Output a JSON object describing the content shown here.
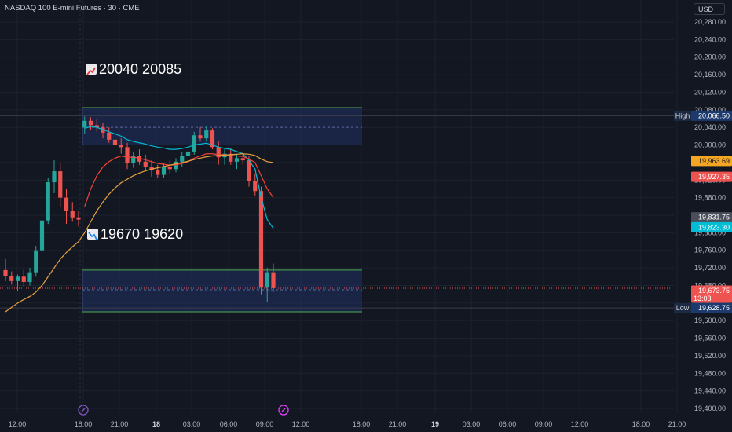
{
  "header": {
    "symbol": "NASDAQ 100 E-mini Futures · 30 · CME",
    "currency": "USD"
  },
  "annotations": {
    "target_up": "20040  20085",
    "target_down": "19670  19620"
  },
  "colors": {
    "bg": "#131722",
    "grid": "#1e222d",
    "up": "#26a69a",
    "down": "#ef5350",
    "zone_fill": "#1f2d5a",
    "zone_line": "#4caf50",
    "ema_fast": "#00bcd4",
    "ema_mid": "#f44336",
    "ema_slow": "#e6a23c",
    "text": "#b2b5be"
  },
  "chart_data": {
    "type": "candlestick",
    "title": "NASDAQ 100 E-mini Futures · 30 · CME",
    "ylim": [
      19390,
      20320
    ],
    "y_ticks": [
      20280,
      20240,
      20200,
      20160,
      20120,
      20080,
      20040,
      20000,
      19960,
      19920,
      19880,
      19840,
      19800,
      19760,
      19720,
      19680,
      19640,
      19600,
      19560,
      19520,
      19480,
      19440,
      19400
    ],
    "x_ticks": [
      "12:00",
      "18:00",
      "21:00",
      "18",
      "03:00",
      "06:00",
      "09:00",
      "12:00",
      "18:00",
      "21:00",
      "19",
      "03:00",
      "06:00",
      "09:00",
      "12:00",
      "18:00",
      "21:00"
    ],
    "candles": [
      {
        "o": 19715,
        "h": 19740,
        "l": 19690,
        "c": 19702
      },
      {
        "o": 19702,
        "h": 19712,
        "l": 19682,
        "c": 19690
      },
      {
        "o": 19690,
        "h": 19705,
        "l": 19668,
        "c": 19700
      },
      {
        "o": 19700,
        "h": 19715,
        "l": 19678,
        "c": 19688
      },
      {
        "o": 19688,
        "h": 19720,
        "l": 19680,
        "c": 19710
      },
      {
        "o": 19710,
        "h": 19770,
        "l": 19700,
        "c": 19760
      },
      {
        "o": 19760,
        "h": 19845,
        "l": 19750,
        "c": 19828
      },
      {
        "o": 19828,
        "h": 19925,
        "l": 19820,
        "c": 19915
      },
      {
        "o": 19915,
        "h": 19965,
        "l": 19890,
        "c": 19940
      },
      {
        "o": 19940,
        "h": 19960,
        "l": 19860,
        "c": 19880
      },
      {
        "o": 19880,
        "h": 19900,
        "l": 19820,
        "c": 19850
      },
      {
        "o": 19850,
        "h": 19870,
        "l": 19825,
        "c": 19835
      },
      {
        "o": 19835,
        "h": 19850,
        "l": 19815,
        "c": 19830
      },
      {
        "o": 20040,
        "h": 20065,
        "l": 20025,
        "c": 20055
      },
      {
        "o": 20055,
        "h": 20063,
        "l": 20035,
        "c": 20045
      },
      {
        "o": 20045,
        "h": 20060,
        "l": 20030,
        "c": 20040
      },
      {
        "o": 20040,
        "h": 20050,
        "l": 20015,
        "c": 20028
      },
      {
        "o": 20028,
        "h": 20040,
        "l": 20005,
        "c": 20012
      },
      {
        "o": 20012,
        "h": 20025,
        "l": 19990,
        "c": 20000
      },
      {
        "o": 20000,
        "h": 20015,
        "l": 19980,
        "c": 19995
      },
      {
        "o": 19995,
        "h": 20005,
        "l": 19945,
        "c": 19958
      },
      {
        "o": 19958,
        "h": 19985,
        "l": 19948,
        "c": 19975
      },
      {
        "o": 19975,
        "h": 19990,
        "l": 19955,
        "c": 19962
      },
      {
        "o": 19962,
        "h": 19978,
        "l": 19940,
        "c": 19950
      },
      {
        "o": 19950,
        "h": 19965,
        "l": 19928,
        "c": 19942
      },
      {
        "o": 19942,
        "h": 19955,
        "l": 19925,
        "c": 19932
      },
      {
        "o": 19932,
        "h": 19958,
        "l": 19925,
        "c": 19950
      },
      {
        "o": 19950,
        "h": 19965,
        "l": 19935,
        "c": 19945
      },
      {
        "o": 19945,
        "h": 19970,
        "l": 19938,
        "c": 19962
      },
      {
        "o": 19962,
        "h": 19985,
        "l": 19950,
        "c": 19975
      },
      {
        "o": 19975,
        "h": 19995,
        "l": 19965,
        "c": 19985
      },
      {
        "o": 19985,
        "h": 20030,
        "l": 19978,
        "c": 20022
      },
      {
        "o": 20022,
        "h": 20040,
        "l": 20008,
        "c": 20015
      },
      {
        "o": 20015,
        "h": 20042,
        "l": 20008,
        "c": 20033
      },
      {
        "o": 20033,
        "h": 20038,
        "l": 19990,
        "c": 19995
      },
      {
        "o": 19995,
        "h": 20008,
        "l": 19955,
        "c": 19972
      },
      {
        "o": 19972,
        "h": 19990,
        "l": 19955,
        "c": 19980
      },
      {
        "o": 19980,
        "h": 19992,
        "l": 19955,
        "c": 19962
      },
      {
        "o": 19962,
        "h": 19980,
        "l": 19945,
        "c": 19970
      },
      {
        "o": 19970,
        "h": 19985,
        "l": 19955,
        "c": 19965
      },
      {
        "o": 19965,
        "h": 19975,
        "l": 19905,
        "c": 19918
      },
      {
        "o": 19918,
        "h": 19935,
        "l": 19885,
        "c": 19895
      },
      {
        "o": 19895,
        "h": 19905,
        "l": 19660,
        "c": 19675
      },
      {
        "o": 19675,
        "h": 19720,
        "l": 19643,
        "c": 19710
      },
      {
        "o": 19710,
        "h": 19730,
        "l": 19665,
        "c": 19674
      }
    ],
    "series": [
      {
        "name": "",
        "color": "#00bcd4",
        "values": [
          null,
          null,
          null,
          null,
          null,
          null,
          null,
          null,
          null,
          null,
          null,
          null,
          null,
          20038,
          20042,
          20040,
          20035,
          20030,
          20025,
          20020,
          20012,
          20008,
          20005,
          20002,
          19998,
          19995,
          19993,
          19990,
          19990,
          19992,
          19995,
          20000,
          20002,
          20004,
          20000,
          19995,
          19992,
          19990,
          19985,
          19980,
          19965,
          19945,
          19880,
          19830,
          19810
        ]
      },
      {
        "name": "",
        "color": "#f44336",
        "values": [
          null,
          null,
          null,
          null,
          null,
          null,
          null,
          null,
          null,
          null,
          null,
          null,
          null,
          19860,
          19900,
          19930,
          19950,
          19962,
          19970,
          19975,
          19972,
          19972,
          19970,
          19966,
          19962,
          19958,
          19956,
          19954,
          19955,
          19958,
          19962,
          19970,
          19975,
          19980,
          19980,
          19978,
          19978,
          19976,
          19975,
          19974,
          19968,
          19960,
          19930,
          19900,
          19880
        ]
      },
      {
        "name": "",
        "color": "#e6a23c",
        "values": [
          19620,
          19630,
          19640,
          19648,
          19655,
          19665,
          19680,
          19700,
          19720,
          19740,
          19755,
          19768,
          19780,
          19800,
          19825,
          19850,
          19870,
          19888,
          19902,
          19914,
          19922,
          19930,
          19936,
          19941,
          19945,
          19948,
          19951,
          19954,
          19957,
          19960,
          19963,
          19967,
          19970,
          19973,
          19975,
          19976,
          19977,
          19978,
          19979,
          19980,
          19979,
          19976,
          19968,
          19962,
          19960
        ]
      }
    ],
    "zones": [
      {
        "top": 20085,
        "mid": 20040,
        "bottom": 20000
      },
      {
        "top": 19715,
        "mid": 19670,
        "bottom": 19620
      }
    ],
    "price_labels": [
      {
        "label": "High",
        "value": "20,066.50",
        "color": "#1c3a6e"
      },
      {
        "label": "",
        "value": "19,963.69",
        "color": "#f5a623"
      },
      {
        "label": "",
        "value": "19,927.35",
        "color": "#ef5350"
      },
      {
        "label": "",
        "value": "19,831.75",
        "color": "#4a4e5a"
      },
      {
        "label": "",
        "value": "19,823.30",
        "color": "#00bcd4"
      },
      {
        "label": "",
        "value": "19,673.75",
        "color": "#ef5350",
        "sub": "13:03"
      },
      {
        "label": "Low",
        "value": "19,628.75",
        "color": "#1c3a6e"
      }
    ]
  }
}
